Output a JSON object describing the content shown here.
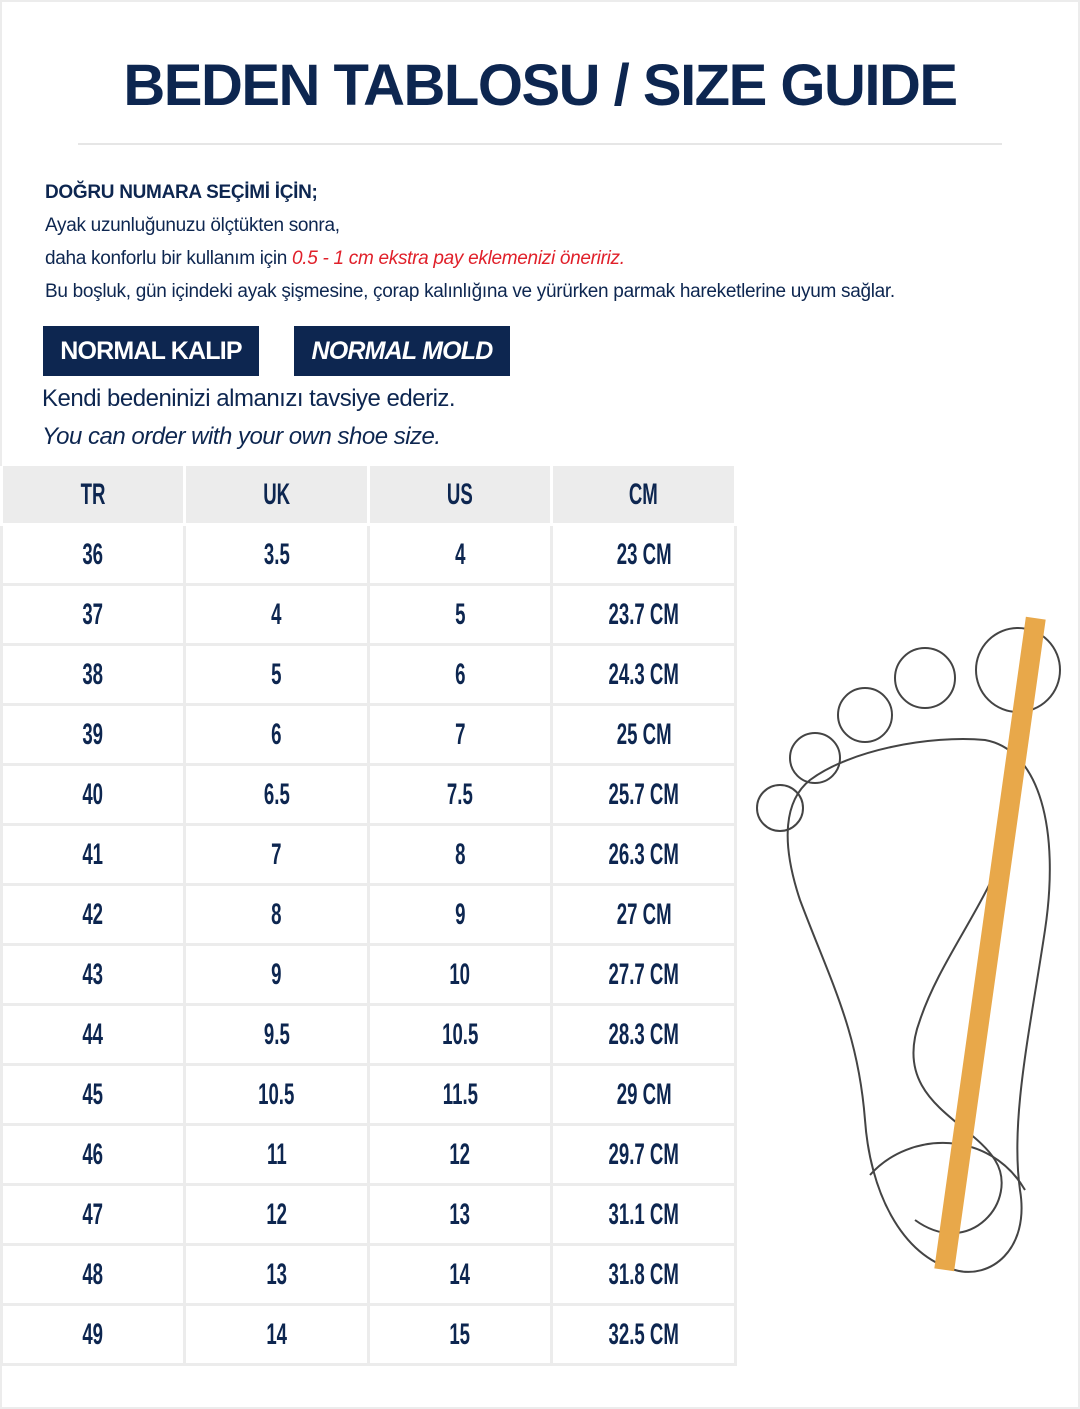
{
  "title": "BEDEN TABLOSU / SIZE GUIDE",
  "intro": {
    "heading": "DOĞRU NUMARA SEÇİMİ İÇİN;",
    "line1": "Ayak uzunluğunuzu ölçtükten sonra,",
    "line2_prefix": "daha konforlu bir kullanım için ",
    "line2_highlight": "0.5 - 1 cm ekstra pay eklemenizi öneririz.",
    "line3": "Bu boşluk, gün içindeki ayak şişmesine, çorap kalınlığına ve yürürken parmak hareketlerine uyum sağlar."
  },
  "badges": {
    "tr": "NORMAL KALIP",
    "en": "NORMAL MOLD"
  },
  "recommendation": {
    "tr": "Kendi bedeninizi almanızı tavsiye ederiz.",
    "en": "You can order with your own shoe size."
  },
  "colors": {
    "navy": "#0d2650",
    "red": "#e0202a",
    "ruler": "#e8a84a"
  },
  "table": {
    "headers": [
      "TR",
      "UK",
      "US",
      "CM"
    ],
    "rows": [
      [
        "36",
        "3.5",
        "4",
        "23 CM"
      ],
      [
        "37",
        "4",
        "5",
        "23.7 CM"
      ],
      [
        "38",
        "5",
        "6",
        "24.3 CM"
      ],
      [
        "39",
        "6",
        "7",
        "25 CM"
      ],
      [
        "40",
        "6.5",
        "7.5",
        "25.7 CM"
      ],
      [
        "41",
        "7",
        "8",
        "26.3 CM"
      ],
      [
        "42",
        "8",
        "9",
        "27 CM"
      ],
      [
        "43",
        "9",
        "10",
        "27.7 CM"
      ],
      [
        "44",
        "9.5",
        "10.5",
        "28.3 CM"
      ],
      [
        "45",
        "10.5",
        "11.5",
        "29 CM"
      ],
      [
        "46",
        "11",
        "12",
        "29.7 CM"
      ],
      [
        "47",
        "12",
        "13",
        "31.1 CM"
      ],
      [
        "48",
        "13",
        "14",
        "31.8 CM"
      ],
      [
        "49",
        "14",
        "15",
        "32.5 CM"
      ]
    ]
  },
  "illustration": "foot-outline-with-measuring-ruler"
}
